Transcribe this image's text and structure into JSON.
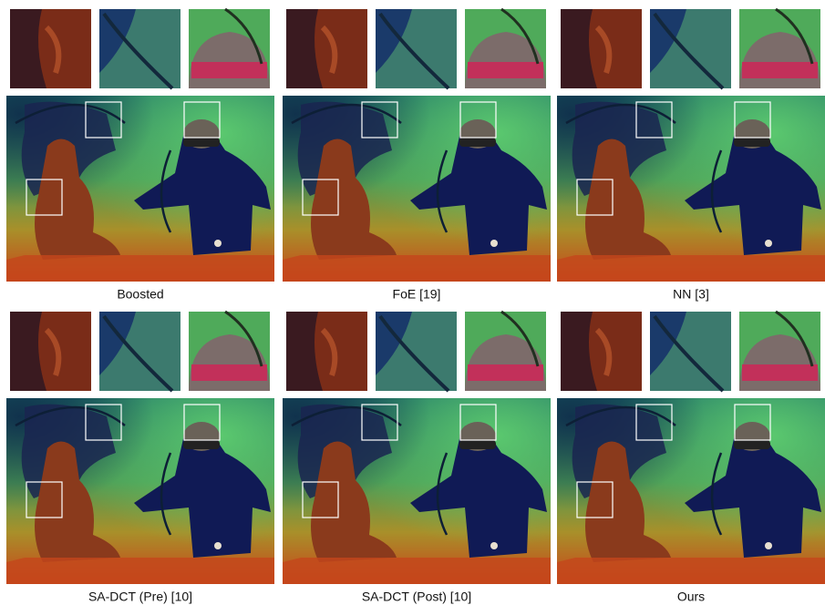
{
  "panels": [
    {
      "caption": "Boosted"
    },
    {
      "caption": "FoE [19]"
    },
    {
      "caption": "NN [3]"
    },
    {
      "caption": "SA-DCT (Pre) [10]"
    },
    {
      "caption": "SA-DCT (Post) [10]"
    },
    {
      "caption": "Ours"
    }
  ]
}
